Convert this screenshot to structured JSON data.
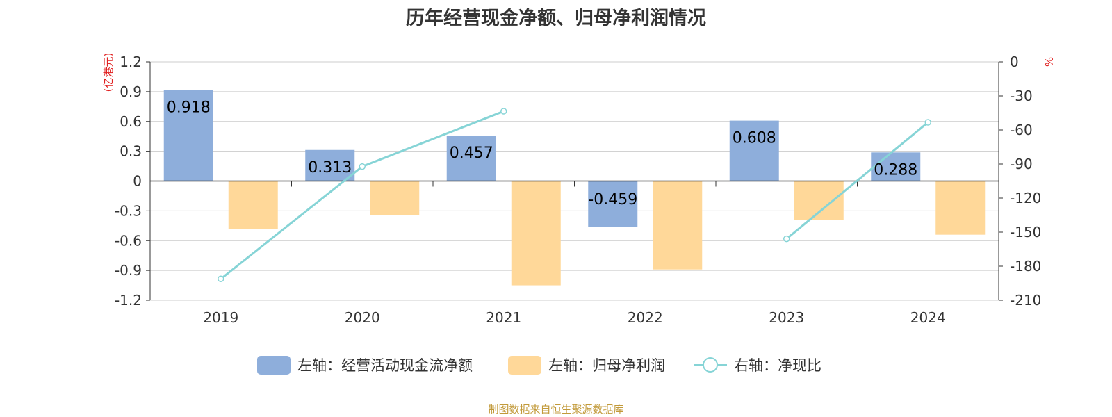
{
  "colors": {
    "bar_blue": "#8eaedb",
    "bar_orange": "#ffd899",
    "line": "#86d4d6",
    "unit_red": "#e02020",
    "source": "#c29a3a",
    "grid": "#cccccc",
    "axis": "#333333"
  },
  "chart_data": {
    "type": "bar",
    "title": "历年经营现金净额、归母净利润情况",
    "categories": [
      "2019",
      "2020",
      "2021",
      "2022",
      "2023",
      "2024"
    ],
    "y_left": {
      "unit": "(亿港元)",
      "ylim": [
        -1.2,
        1.2
      ],
      "ticks": [
        "1.2",
        "0.9",
        "0.6",
        "0.3",
        "0",
        "-0.3",
        "-0.6",
        "-0.9",
        "-1.2"
      ]
    },
    "y_right": {
      "unit": "%",
      "ylim": [
        -210,
        0
      ],
      "ticks": [
        "0",
        "-30",
        "-60",
        "-90",
        "-120",
        "-150",
        "-180",
        "-210"
      ]
    },
    "grid": true,
    "legend_position": "bottom",
    "series": [
      {
        "name": "左轴：经营活动现金流净额",
        "type": "bar",
        "axis": "left",
        "values": [
          0.918,
          0.313,
          0.457,
          -0.459,
          0.608,
          0.288
        ],
        "labels": [
          "0.918",
          "0.313",
          "0.457",
          "-0.459",
          "0.608",
          "0.288"
        ]
      },
      {
        "name": "左轴：归母净利润",
        "type": "bar",
        "axis": "left",
        "values": [
          -0.48,
          -0.34,
          -1.05,
          -0.89,
          -0.39,
          -0.54
        ]
      },
      {
        "name": "右轴：净现比",
        "type": "line",
        "axis": "right",
        "values": [
          -191.2,
          -92.2,
          -43.5,
          null,
          -155.9,
          -53.3
        ]
      }
    ]
  },
  "source": "制图数据来自恒生聚源数据库"
}
